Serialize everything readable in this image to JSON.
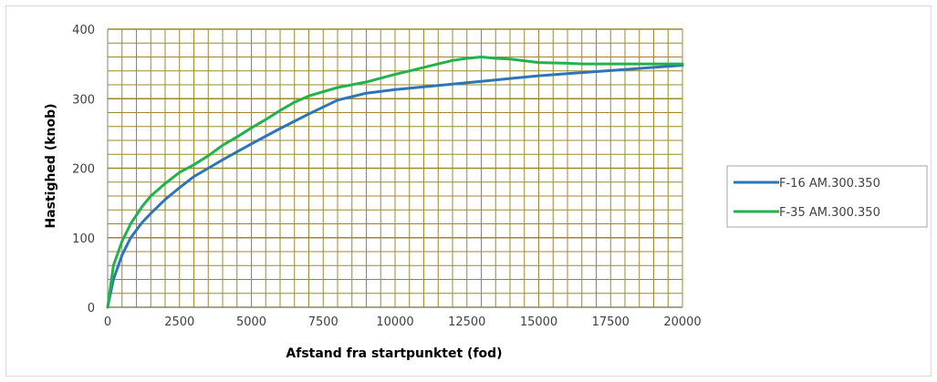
{
  "chart_data": {
    "type": "line",
    "title": "",
    "xlabel": "Afstand fra startpunktet (fod)",
    "ylabel": "Hastighed (knob)",
    "xlim": [
      0,
      20000
    ],
    "ylim": [
      0,
      400
    ],
    "xticks": [
      0,
      2500,
      5000,
      7500,
      10000,
      12500,
      15000,
      17500,
      20000
    ],
    "yticks": [
      0,
      100,
      200,
      300,
      400
    ],
    "grid": true,
    "grid_color": "#9c8a2e",
    "plot_background": "#ffffff",
    "legend_position": "right",
    "series": [
      {
        "name": "F-16 AM.300.350",
        "color": "#2e75b6",
        "x": [
          0,
          200,
          500,
          800,
          1200,
          1500,
          2000,
          2500,
          3000,
          3500,
          4000,
          5000,
          6000,
          7000,
          8000,
          9000,
          10000,
          11000,
          12000,
          13000,
          14000,
          15000,
          16000,
          17000,
          18000,
          19000,
          20000
        ],
        "y": [
          0,
          40,
          75,
          100,
          122,
          135,
          155,
          172,
          188,
          200,
          212,
          235,
          257,
          278,
          298,
          308,
          313,
          317,
          321,
          325,
          329,
          333,
          336,
          339,
          342,
          345,
          348
        ]
      },
      {
        "name": "F-35 AM.300.350",
        "color": "#22b14c",
        "x": [
          0,
          200,
          500,
          800,
          1200,
          1500,
          2000,
          2500,
          3000,
          3500,
          4000,
          4500,
          5000,
          5500,
          6000,
          6500,
          7000,
          7500,
          8000,
          9000,
          10000,
          10500,
          11000,
          11500,
          12000,
          12500,
          13000,
          13500,
          14000,
          15000,
          16000,
          16500,
          17000,
          18000,
          19000,
          20000
        ],
        "y": [
          0,
          60,
          95,
          120,
          145,
          160,
          178,
          194,
          205,
          218,
          233,
          245,
          258,
          270,
          283,
          295,
          304,
          310,
          316,
          324,
          335,
          340,
          345,
          350,
          355,
          358,
          360,
          358,
          357,
          352,
          351,
          350,
          350,
          350,
          350,
          350
        ]
      }
    ]
  }
}
